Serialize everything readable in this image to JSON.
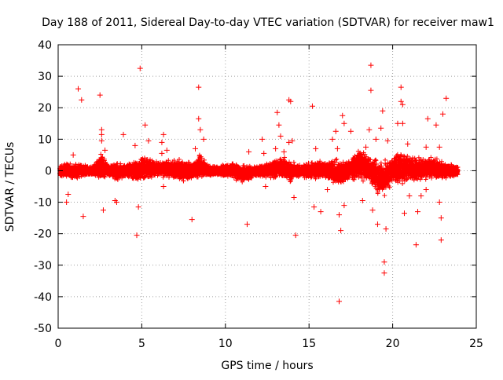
{
  "chart_data": {
    "type": "scatter",
    "title": "Day 188 of 2011, Sidereal Day-to-day VTEC variation (SDTVAR) for receiver maw1",
    "xlabel": "GPS time / hours",
    "ylabel": "SDTVAR / TECUs",
    "xlim": [
      0,
      25
    ],
    "ylim": [
      -50,
      40
    ],
    "xticks": [
      "0",
      "5",
      "10",
      "15",
      "20",
      "25"
    ],
    "yticks": [
      "40",
      "30",
      "20",
      "10",
      "0",
      "-10",
      "-20",
      "-30",
      "-40",
      "-50"
    ],
    "grid": true,
    "marker": "+",
    "series_color": "#ff0000",
    "band": {
      "x_range": [
        0.1,
        23.9
      ],
      "envelope": [
        [
          0.0,
          -2,
          2
        ],
        [
          1.0,
          -3,
          3
        ],
        [
          2.0,
          -1.5,
          1.5
        ],
        [
          2.6,
          -4,
          6
        ],
        [
          3.0,
          -1.5,
          2
        ],
        [
          3.5,
          -4,
          3
        ],
        [
          4.0,
          -2,
          2
        ],
        [
          4.8,
          -4,
          4
        ],
        [
          5.2,
          -3,
          5
        ],
        [
          6.0,
          -2,
          3
        ],
        [
          7.0,
          -3,
          4
        ],
        [
          7.5,
          -4,
          4
        ],
        [
          8.0,
          -3,
          3
        ],
        [
          8.5,
          -3,
          6
        ],
        [
          9.0,
          -2,
          2
        ],
        [
          10.0,
          -2,
          2
        ],
        [
          10.5,
          -3,
          3
        ],
        [
          11.0,
          -4,
          2
        ],
        [
          12.0,
          -2,
          2
        ],
        [
          13.0,
          -3,
          4
        ],
        [
          13.5,
          -3,
          5
        ],
        [
          14.0,
          -4,
          3
        ],
        [
          14.5,
          -2,
          2
        ],
        [
          15.0,
          -3,
          3
        ],
        [
          16.0,
          -3,
          4
        ],
        [
          16.8,
          -6,
          4
        ],
        [
          17.5,
          -3,
          4
        ],
        [
          18.0,
          -4,
          8
        ],
        [
          18.5,
          -3,
          5
        ],
        [
          19.0,
          -8,
          5
        ],
        [
          19.5,
          -9,
          4
        ],
        [
          20.0,
          -4,
          5
        ],
        [
          20.5,
          -6,
          8
        ],
        [
          21.0,
          -3,
          5
        ],
        [
          21.5,
          -4,
          5
        ],
        [
          22.0,
          -3,
          4
        ],
        [
          22.5,
          -3,
          5
        ],
        [
          23.0,
          -3,
          3
        ],
        [
          23.9,
          -2,
          2
        ]
      ]
    },
    "outliers": [
      {
        "x": 0.5,
        "y": -10
      },
      {
        "x": 0.6,
        "y": -7.5
      },
      {
        "x": 0.9,
        "y": 5
      },
      {
        "x": 1.2,
        "y": 26
      },
      {
        "x": 1.4,
        "y": 22.5
      },
      {
        "x": 1.5,
        "y": -14.5
      },
      {
        "x": 2.5,
        "y": 24
      },
      {
        "x": 2.6,
        "y": 13
      },
      {
        "x": 2.6,
        "y": 11.5
      },
      {
        "x": 2.6,
        "y": 9.5
      },
      {
        "x": 2.7,
        "y": -12.5
      },
      {
        "x": 2.8,
        "y": 6.5
      },
      {
        "x": 3.4,
        "y": -9.5
      },
      {
        "x": 3.5,
        "y": -10
      },
      {
        "x": 3.9,
        "y": 11.5
      },
      {
        "x": 4.6,
        "y": 8
      },
      {
        "x": 4.7,
        "y": -20.5
      },
      {
        "x": 4.8,
        "y": -11.5
      },
      {
        "x": 4.9,
        "y": 32.5
      },
      {
        "x": 5.2,
        "y": 14.5
      },
      {
        "x": 5.4,
        "y": 9.5
      },
      {
        "x": 6.2,
        "y": 5.5
      },
      {
        "x": 6.3,
        "y": -5
      },
      {
        "x": 6.5,
        "y": 6.5
      },
      {
        "x": 6.3,
        "y": 11.5
      },
      {
        "x": 6.2,
        "y": 9
      },
      {
        "x": 8.0,
        "y": -15.5
      },
      {
        "x": 8.2,
        "y": 7
      },
      {
        "x": 8.4,
        "y": 26.5
      },
      {
        "x": 8.4,
        "y": 16.5
      },
      {
        "x": 8.5,
        "y": 13
      },
      {
        "x": 8.7,
        "y": 10
      },
      {
        "x": 11.3,
        "y": -17
      },
      {
        "x": 11.4,
        "y": 6
      },
      {
        "x": 12.3,
        "y": 5.5
      },
      {
        "x": 12.2,
        "y": 10
      },
      {
        "x": 12.4,
        "y": -5
      },
      {
        "x": 13.0,
        "y": 7
      },
      {
        "x": 13.1,
        "y": 18.5
      },
      {
        "x": 13.2,
        "y": 14.5
      },
      {
        "x": 13.3,
        "y": 11
      },
      {
        "x": 13.5,
        "y": 6
      },
      {
        "x": 13.8,
        "y": 22.5
      },
      {
        "x": 13.9,
        "y": 22
      },
      {
        "x": 13.8,
        "y": 9
      },
      {
        "x": 14.0,
        "y": 9.5
      },
      {
        "x": 14.2,
        "y": -20.5
      },
      {
        "x": 14.1,
        "y": -8.5
      },
      {
        "x": 15.2,
        "y": 20.5
      },
      {
        "x": 15.3,
        "y": -11.5
      },
      {
        "x": 15.4,
        "y": 7
      },
      {
        "x": 15.7,
        "y": -13
      },
      {
        "x": 16.1,
        "y": -6
      },
      {
        "x": 16.4,
        "y": 10
      },
      {
        "x": 16.6,
        "y": 12.5
      },
      {
        "x": 16.7,
        "y": 7
      },
      {
        "x": 16.8,
        "y": -41.5
      },
      {
        "x": 16.9,
        "y": -19
      },
      {
        "x": 17.0,
        "y": 17.5
      },
      {
        "x": 17.1,
        "y": 15
      },
      {
        "x": 16.8,
        "y": -14
      },
      {
        "x": 17.1,
        "y": -11
      },
      {
        "x": 17.5,
        "y": 12.5
      },
      {
        "x": 18.2,
        "y": -9.5
      },
      {
        "x": 18.4,
        "y": 7.5
      },
      {
        "x": 18.6,
        "y": 13
      },
      {
        "x": 18.7,
        "y": 33.5
      },
      {
        "x": 18.7,
        "y": 25.5
      },
      {
        "x": 18.8,
        "y": -12.5
      },
      {
        "x": 19.0,
        "y": 10
      },
      {
        "x": 19.1,
        "y": -17
      },
      {
        "x": 19.3,
        "y": 13.5
      },
      {
        "x": 19.4,
        "y": 19
      },
      {
        "x": 19.5,
        "y": -29
      },
      {
        "x": 19.5,
        "y": -32.5
      },
      {
        "x": 19.6,
        "y": -18.5
      },
      {
        "x": 19.7,
        "y": 9.5
      },
      {
        "x": 20.3,
        "y": 15
      },
      {
        "x": 20.5,
        "y": 26.5
      },
      {
        "x": 20.5,
        "y": 22
      },
      {
        "x": 20.6,
        "y": 21
      },
      {
        "x": 20.6,
        "y": 15
      },
      {
        "x": 20.7,
        "y": -13.5
      },
      {
        "x": 20.9,
        "y": 8.5
      },
      {
        "x": 21.0,
        "y": -8
      },
      {
        "x": 21.4,
        "y": -23.5
      },
      {
        "x": 21.5,
        "y": -13
      },
      {
        "x": 21.7,
        "y": -8
      },
      {
        "x": 22.0,
        "y": 7.5
      },
      {
        "x": 22.0,
        "y": -6
      },
      {
        "x": 22.1,
        "y": 16.5
      },
      {
        "x": 22.6,
        "y": 14.5
      },
      {
        "x": 22.9,
        "y": -15
      },
      {
        "x": 22.9,
        "y": -22
      },
      {
        "x": 22.8,
        "y": 7.5
      },
      {
        "x": 23.0,
        "y": 18
      },
      {
        "x": 23.2,
        "y": 23
      },
      {
        "x": 22.8,
        "y": -10
      }
    ]
  }
}
